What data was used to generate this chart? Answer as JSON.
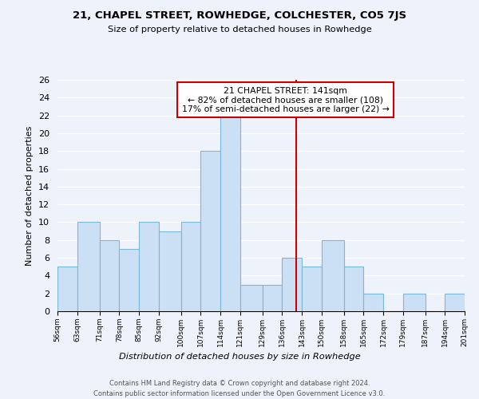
{
  "title": "21, CHAPEL STREET, ROWHEDGE, COLCHESTER, CO5 7JS",
  "subtitle": "Size of property relative to detached houses in Rowhedge",
  "xlabel": "Distribution of detached houses by size in Rowhedge",
  "ylabel": "Number of detached properties",
  "bins": [
    56,
    63,
    71,
    78,
    85,
    92,
    100,
    107,
    114,
    121,
    129,
    136,
    143,
    150,
    158,
    165,
    172,
    179,
    187,
    194,
    201
  ],
  "bin_labels": [
    "56sqm",
    "63sqm",
    "71sqm",
    "78sqm",
    "85sqm",
    "92sqm",
    "100sqm",
    "107sqm",
    "114sqm",
    "121sqm",
    "129sqm",
    "136sqm",
    "143sqm",
    "150sqm",
    "158sqm",
    "165sqm",
    "172sqm",
    "179sqm",
    "187sqm",
    "194sqm",
    "201sqm"
  ],
  "counts": [
    5,
    10,
    8,
    7,
    10,
    9,
    10,
    18,
    22,
    3,
    3,
    6,
    5,
    8,
    5,
    2,
    0,
    2,
    0,
    2
  ],
  "bar_color": "#cce0f5",
  "bar_edge_color": "#7ab8d8",
  "property_line_x": 141,
  "property_line_color": "#cc0000",
  "annotation_title": "21 CHAPEL STREET: 141sqm",
  "annotation_line1": "← 82% of detached houses are smaller (108)",
  "annotation_line2": "17% of semi-detached houses are larger (22) →",
  "annotation_box_color": "#ffffff",
  "annotation_box_edge": "#cc0000",
  "ylim": [
    0,
    26
  ],
  "yticks": [
    0,
    2,
    4,
    6,
    8,
    10,
    12,
    14,
    16,
    18,
    20,
    22,
    24,
    26
  ],
  "background_color": "#eef2fb",
  "grid_color": "#ffffff",
  "footer_line1": "Contains HM Land Registry data © Crown copyright and database right 2024.",
  "footer_line2": "Contains public sector information licensed under the Open Government Licence v3.0."
}
